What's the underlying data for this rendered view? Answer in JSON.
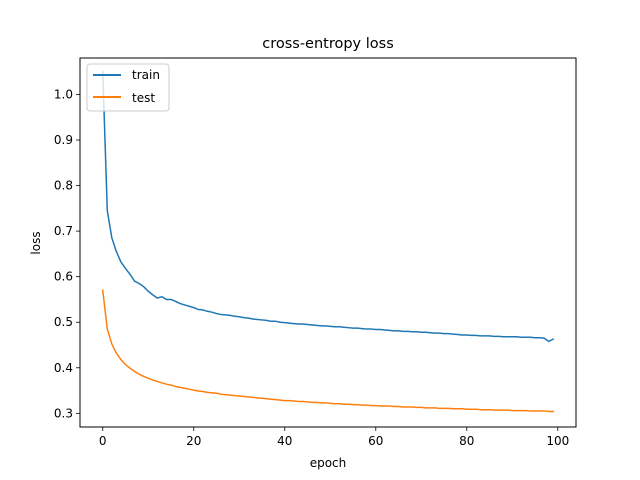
{
  "chart_data": {
    "type": "line",
    "title": "cross-entropy loss",
    "xlabel": "epoch",
    "ylabel": "loss",
    "xlim": [
      -5,
      104
    ],
    "ylim": [
      0.27,
      1.08
    ],
    "xticks": [
      0,
      20,
      40,
      60,
      80,
      100
    ],
    "xtick_labels": [
      "0",
      "20",
      "40",
      "60",
      "80",
      "100"
    ],
    "yticks": [
      0.3,
      0.4,
      0.5,
      0.6,
      0.7,
      0.8,
      0.9,
      1.0
    ],
    "ytick_labels": [
      "0.3",
      "0.4",
      "0.5",
      "0.6",
      "0.7",
      "0.8",
      "0.9",
      "1.0"
    ],
    "grid": false,
    "legend_position": "top-left",
    "series": [
      {
        "name": "train",
        "color": "#1f77b4",
        "x": [
          0,
          1,
          2,
          3,
          4,
          5,
          6,
          7,
          8,
          9,
          10,
          11,
          12,
          13,
          14,
          15,
          16,
          17,
          18,
          19,
          20,
          21,
          22,
          23,
          24,
          25,
          26,
          27,
          28,
          29,
          30,
          31,
          32,
          33,
          34,
          35,
          36,
          37,
          38,
          39,
          40,
          41,
          42,
          43,
          44,
          45,
          46,
          47,
          48,
          49,
          50,
          51,
          52,
          53,
          54,
          55,
          56,
          57,
          58,
          59,
          60,
          61,
          62,
          63,
          64,
          65,
          66,
          67,
          68,
          69,
          70,
          71,
          72,
          73,
          74,
          75,
          76,
          77,
          78,
          79,
          80,
          81,
          82,
          83,
          84,
          85,
          86,
          87,
          88,
          89,
          90,
          91,
          92,
          93,
          94,
          95,
          96,
          97,
          98,
          99
        ],
        "values": [
          1.05,
          0.745,
          0.685,
          0.655,
          0.632,
          0.618,
          0.605,
          0.59,
          0.585,
          0.578,
          0.568,
          0.56,
          0.553,
          0.556,
          0.55,
          0.55,
          0.546,
          0.541,
          0.538,
          0.535,
          0.532,
          0.528,
          0.527,
          0.524,
          0.522,
          0.519,
          0.517,
          0.516,
          0.515,
          0.513,
          0.512,
          0.51,
          0.509,
          0.507,
          0.506,
          0.505,
          0.504,
          0.502,
          0.502,
          0.5,
          0.499,
          0.498,
          0.497,
          0.496,
          0.496,
          0.495,
          0.494,
          0.493,
          0.492,
          0.492,
          0.491,
          0.49,
          0.49,
          0.489,
          0.488,
          0.487,
          0.487,
          0.486,
          0.485,
          0.485,
          0.484,
          0.484,
          0.483,
          0.482,
          0.481,
          0.481,
          0.48,
          0.48,
          0.479,
          0.479,
          0.478,
          0.478,
          0.477,
          0.476,
          0.476,
          0.475,
          0.475,
          0.474,
          0.473,
          0.472,
          0.472,
          0.471,
          0.471,
          0.47,
          0.47,
          0.47,
          0.469,
          0.469,
          0.468,
          0.468,
          0.468,
          0.468,
          0.467,
          0.467,
          0.467,
          0.466,
          0.466,
          0.465,
          0.458,
          0.463
        ]
      },
      {
        "name": "test",
        "color": "#ff7f0e",
        "x": [
          0,
          1,
          2,
          3,
          4,
          5,
          6,
          7,
          8,
          9,
          10,
          11,
          12,
          13,
          14,
          15,
          16,
          17,
          18,
          19,
          20,
          21,
          22,
          23,
          24,
          25,
          26,
          27,
          28,
          29,
          30,
          31,
          32,
          33,
          34,
          35,
          36,
          37,
          38,
          39,
          40,
          41,
          42,
          43,
          44,
          45,
          46,
          47,
          48,
          49,
          50,
          51,
          52,
          53,
          54,
          55,
          56,
          57,
          58,
          59,
          60,
          61,
          62,
          63,
          64,
          65,
          66,
          67,
          68,
          69,
          70,
          71,
          72,
          73,
          74,
          75,
          76,
          77,
          78,
          79,
          80,
          81,
          82,
          83,
          84,
          85,
          86,
          87,
          88,
          89,
          90,
          91,
          92,
          93,
          94,
          95,
          96,
          97,
          98,
          99
        ],
        "values": [
          0.57,
          0.485,
          0.452,
          0.432,
          0.418,
          0.407,
          0.399,
          0.392,
          0.386,
          0.381,
          0.377,
          0.373,
          0.37,
          0.367,
          0.364,
          0.362,
          0.359,
          0.357,
          0.355,
          0.353,
          0.351,
          0.349,
          0.348,
          0.346,
          0.345,
          0.344,
          0.342,
          0.341,
          0.34,
          0.339,
          0.338,
          0.337,
          0.336,
          0.335,
          0.334,
          0.333,
          0.332,
          0.331,
          0.33,
          0.329,
          0.328,
          0.328,
          0.327,
          0.326,
          0.326,
          0.325,
          0.324,
          0.324,
          0.323,
          0.323,
          0.322,
          0.321,
          0.321,
          0.32,
          0.32,
          0.319,
          0.319,
          0.318,
          0.318,
          0.317,
          0.317,
          0.316,
          0.316,
          0.316,
          0.315,
          0.315,
          0.314,
          0.314,
          0.314,
          0.313,
          0.313,
          0.312,
          0.312,
          0.312,
          0.311,
          0.311,
          0.311,
          0.31,
          0.31,
          0.31,
          0.309,
          0.309,
          0.309,
          0.308,
          0.308,
          0.308,
          0.307,
          0.307,
          0.307,
          0.307,
          0.306,
          0.306,
          0.306,
          0.306,
          0.305,
          0.305,
          0.305,
          0.305,
          0.304,
          0.304
        ]
      }
    ]
  }
}
